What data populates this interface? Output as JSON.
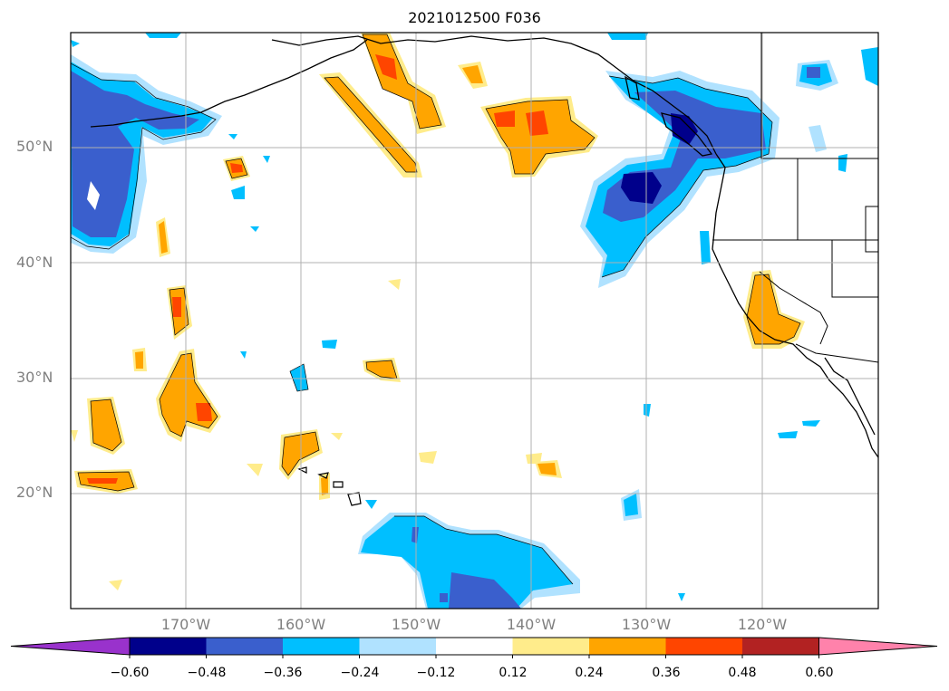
{
  "title": "2021012500 F036",
  "lat_labels": [
    "50°N",
    "40°N",
    "30°N",
    "20°N"
  ],
  "lon_labels": [
    "170°W",
    "160°W",
    "150°W",
    "140°W",
    "130°W",
    "120°W"
  ],
  "colorbar": {
    "labels": [
      "−0.60",
      "−0.48",
      "−0.36",
      "−0.24",
      "−0.12",
      "0.12",
      "0.24",
      "0.36",
      "0.48",
      "0.60"
    ],
    "colors": [
      "#9932cc",
      "#00008b",
      "#3a5fcd",
      "#00bfff",
      "#b0e2ff",
      "#ffffff",
      "#ffec8b",
      "#ffa500",
      "#ff4500",
      "#b22222",
      "#ff82ab"
    ]
  },
  "colors": {
    "deep_blue": "#00008b",
    "blue": "#3a5fcd",
    "cyan": "#00bfff",
    "light_blue": "#b0e2ff",
    "yellow": "#ffec8b",
    "orange": "#ffa500",
    "red_orange": "#ff4500",
    "grid": "#b0b0b0",
    "label_gray": "#808080"
  }
}
